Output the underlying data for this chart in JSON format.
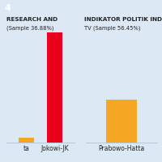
{
  "title": "4",
  "title_bg": "#3a3a3a",
  "bg_color": "#dce9f5",
  "left_label_line1": "RESEARCH AND",
  "left_label_line2": "(Sample 36.88%)",
  "right_label_line1": "INDIKATOR POLITIK IND",
  "right_label_line2": "TV (Sample 56.45%)",
  "left_bars": [
    {
      "label": "ta",
      "value": 4,
      "color": "#f5a623"
    },
    {
      "label": "Jokowi-JK",
      "value": 97,
      "color": "#e8001c"
    }
  ],
  "right_bars": [
    {
      "label": "Prabowo-Hatta",
      "value": 38,
      "color": "#f5a623"
    }
  ],
  "ymax": 100,
  "label_fontsize": 5.5,
  "header_fontsize": 5.2,
  "grid_color": "#c5d8ea",
  "axis_color": "#b0c4d8",
  "text_color": "#222222"
}
